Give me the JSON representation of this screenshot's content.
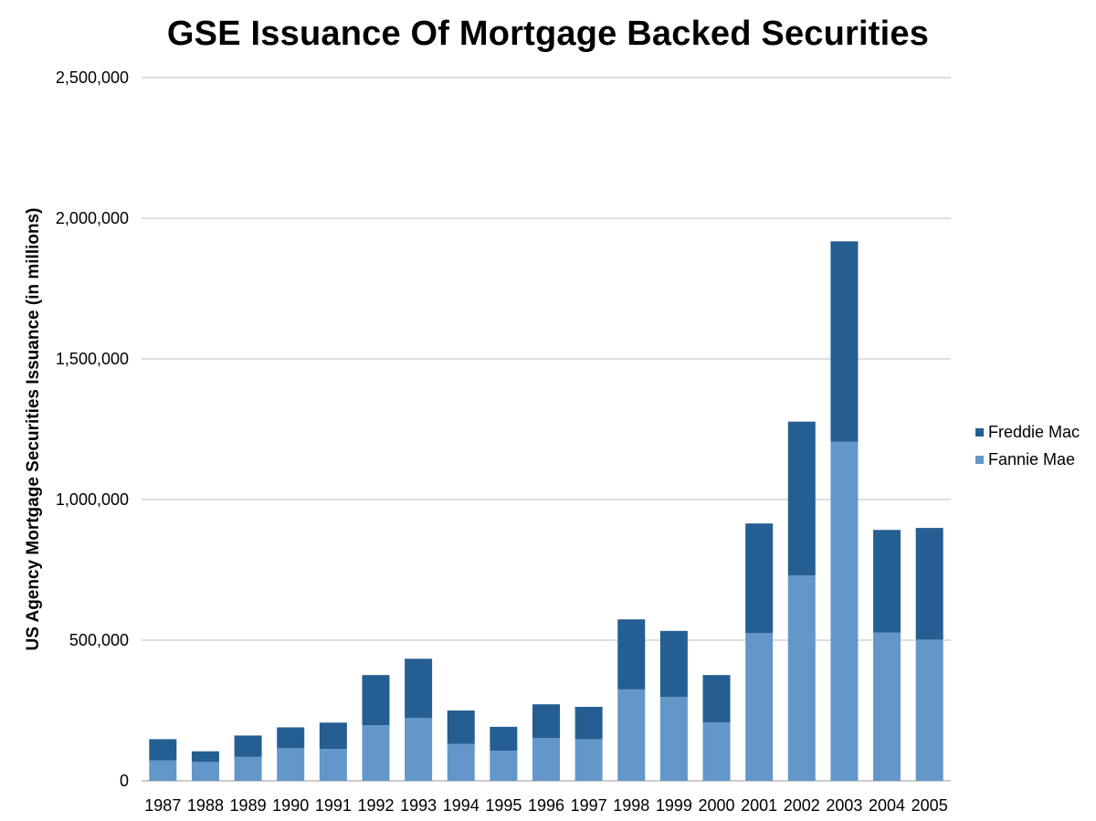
{
  "chart_data": {
    "type": "bar",
    "stacked": true,
    "title": "GSE Issuance Of Mortgage Backed Securities",
    "xlabel": "",
    "ylabel": "US Agency Mortgage Securities Issuance (in millions)",
    "ylim": [
      0,
      2500000
    ],
    "yticks": [
      0,
      500000,
      1000000,
      1500000,
      2000000,
      2500000
    ],
    "ytick_labels": [
      "0",
      "500,000",
      "1,000,000",
      "1,500,000",
      "2,000,000",
      "2,500,000"
    ],
    "grid": true,
    "legend_position": "right",
    "categories": [
      "1987",
      "1988",
      "1989",
      "1990",
      "1991",
      "1992",
      "1993",
      "1994",
      "1995",
      "1996",
      "1997",
      "1998",
      "1999",
      "2000",
      "2001",
      "2002",
      "2003",
      "2004",
      "2005"
    ],
    "series": [
      {
        "name": "Fannie Mae",
        "color": "#6497c9",
        "values": [
          73000,
          67000,
          85000,
          116000,
          113000,
          198000,
          224000,
          131000,
          107000,
          152000,
          148000,
          325000,
          298000,
          208000,
          525000,
          730000,
          1205000,
          527000,
          502000
        ]
      },
      {
        "name": "Freddie Mac",
        "color": "#255e92",
        "values": [
          75000,
          38000,
          76000,
          74000,
          94000,
          178000,
          210000,
          119000,
          85000,
          120000,
          115000,
          249000,
          235000,
          168000,
          390000,
          547000,
          713000,
          365000,
          397000
        ]
      }
    ],
    "legend": [
      {
        "label": "Freddie Mac",
        "color": "#255e92"
      },
      {
        "label": "Fannie Mae",
        "color": "#6497c9"
      }
    ]
  }
}
